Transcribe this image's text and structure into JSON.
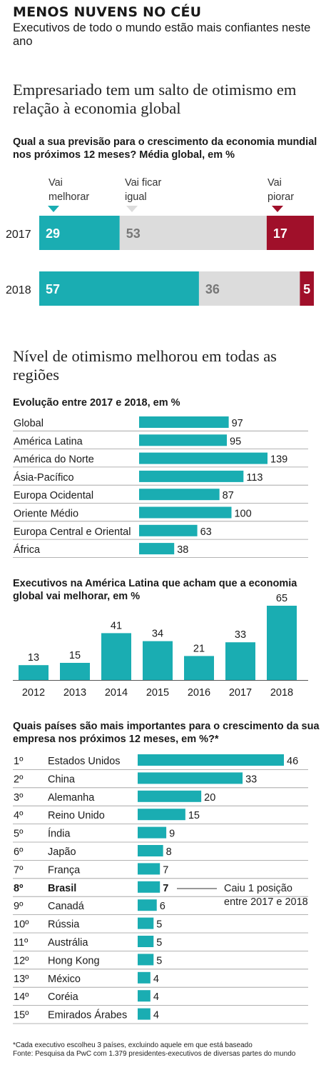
{
  "header": {
    "kicker": "MENOS NUVENS NO CÉU",
    "subtitle": "Executivos de todo o mundo estão mais confiantes neste ano"
  },
  "section1": {
    "headline": "Empresariado tem um salto de otimismo em relação à economia global",
    "question": "Qual a sua previsão para o crescimento da economia mundial nos próximos 12 meses? Média global, em %",
    "legend": {
      "better_line1": "Vai",
      "better_line2": "melhorar",
      "same_line1": "Vai ficar",
      "same_line2": "igual",
      "worse_line1": "Vai",
      "worse_line2": "piorar"
    }
  },
  "section2": {
    "headline": "Nível de otimismo melhorou em todas as regiões",
    "question": "Evolução entre 2017 e 2018, em %"
  },
  "section3": {
    "question": "Executivos na América Latina que acham que a economia global vai melhorar, em %"
  },
  "section4": {
    "question": "Quais países são mais importantes para o crescimento da sua empresa nos próximos 12 meses, em %?*",
    "annotation_line1": "Caiu 1 posição",
    "annotation_line2": "entre 2017 e 2018"
  },
  "footer": {
    "note": "*Cada executivo escolheu 3 países, excluindo aquele em que está baseado",
    "source": "Fonte: Pesquisa da PwC com 1.379 presidentes-executivos de diversas partes do mundo"
  },
  "colors": {
    "teal": "#1AADB2",
    "gray": "#DCDCDC",
    "red": "#A0102A",
    "grayText": "#777777"
  },
  "chart_data": [
    {
      "type": "bar",
      "stacked": true,
      "orientation": "horizontal",
      "categories": [
        "2017",
        "2018"
      ],
      "series": [
        {
          "name": "Vai melhorar",
          "values": [
            29,
            57
          ]
        },
        {
          "name": "Vai ficar igual",
          "values": [
            53,
            36
          ]
        },
        {
          "name": "Vai piorar",
          "values": [
            17,
            5
          ]
        }
      ]
    },
    {
      "type": "bar",
      "orientation": "horizontal",
      "categories": [
        "Global",
        "América Latina",
        "América do Norte",
        "Ásia-Pacífico",
        "Europa Ocidental",
        "Oriente Médio",
        "Europa Central e Oriental",
        "África"
      ],
      "values": [
        97,
        95,
        139,
        113,
        87,
        100,
        63,
        38
      ]
    },
    {
      "type": "bar",
      "orientation": "vertical",
      "categories": [
        "2012",
        "2013",
        "2014",
        "2015",
        "2016",
        "2017",
        "2018"
      ],
      "values": [
        13,
        15,
        41,
        34,
        21,
        33,
        65
      ]
    },
    {
      "type": "bar",
      "orientation": "horizontal",
      "ranks": [
        "1º",
        "2º",
        "3º",
        "4º",
        "5º",
        "6º",
        "7º",
        "8º",
        "9º",
        "10º",
        "11º",
        "12º",
        "13º",
        "14º",
        "15º"
      ],
      "categories": [
        "Estados Unidos",
        "China",
        "Alemanha",
        "Reino Unido",
        "Índia",
        "Japão",
        "França",
        "Brasil",
        "Canadá",
        "Rússia",
        "Austrália",
        "Hong Kong",
        "México",
        "Coréia",
        "Emirados Árabes"
      ],
      "values": [
        46,
        33,
        20,
        15,
        9,
        8,
        7,
        7,
        6,
        5,
        5,
        5,
        4,
        4,
        4
      ],
      "highlight": "Brasil"
    }
  ]
}
